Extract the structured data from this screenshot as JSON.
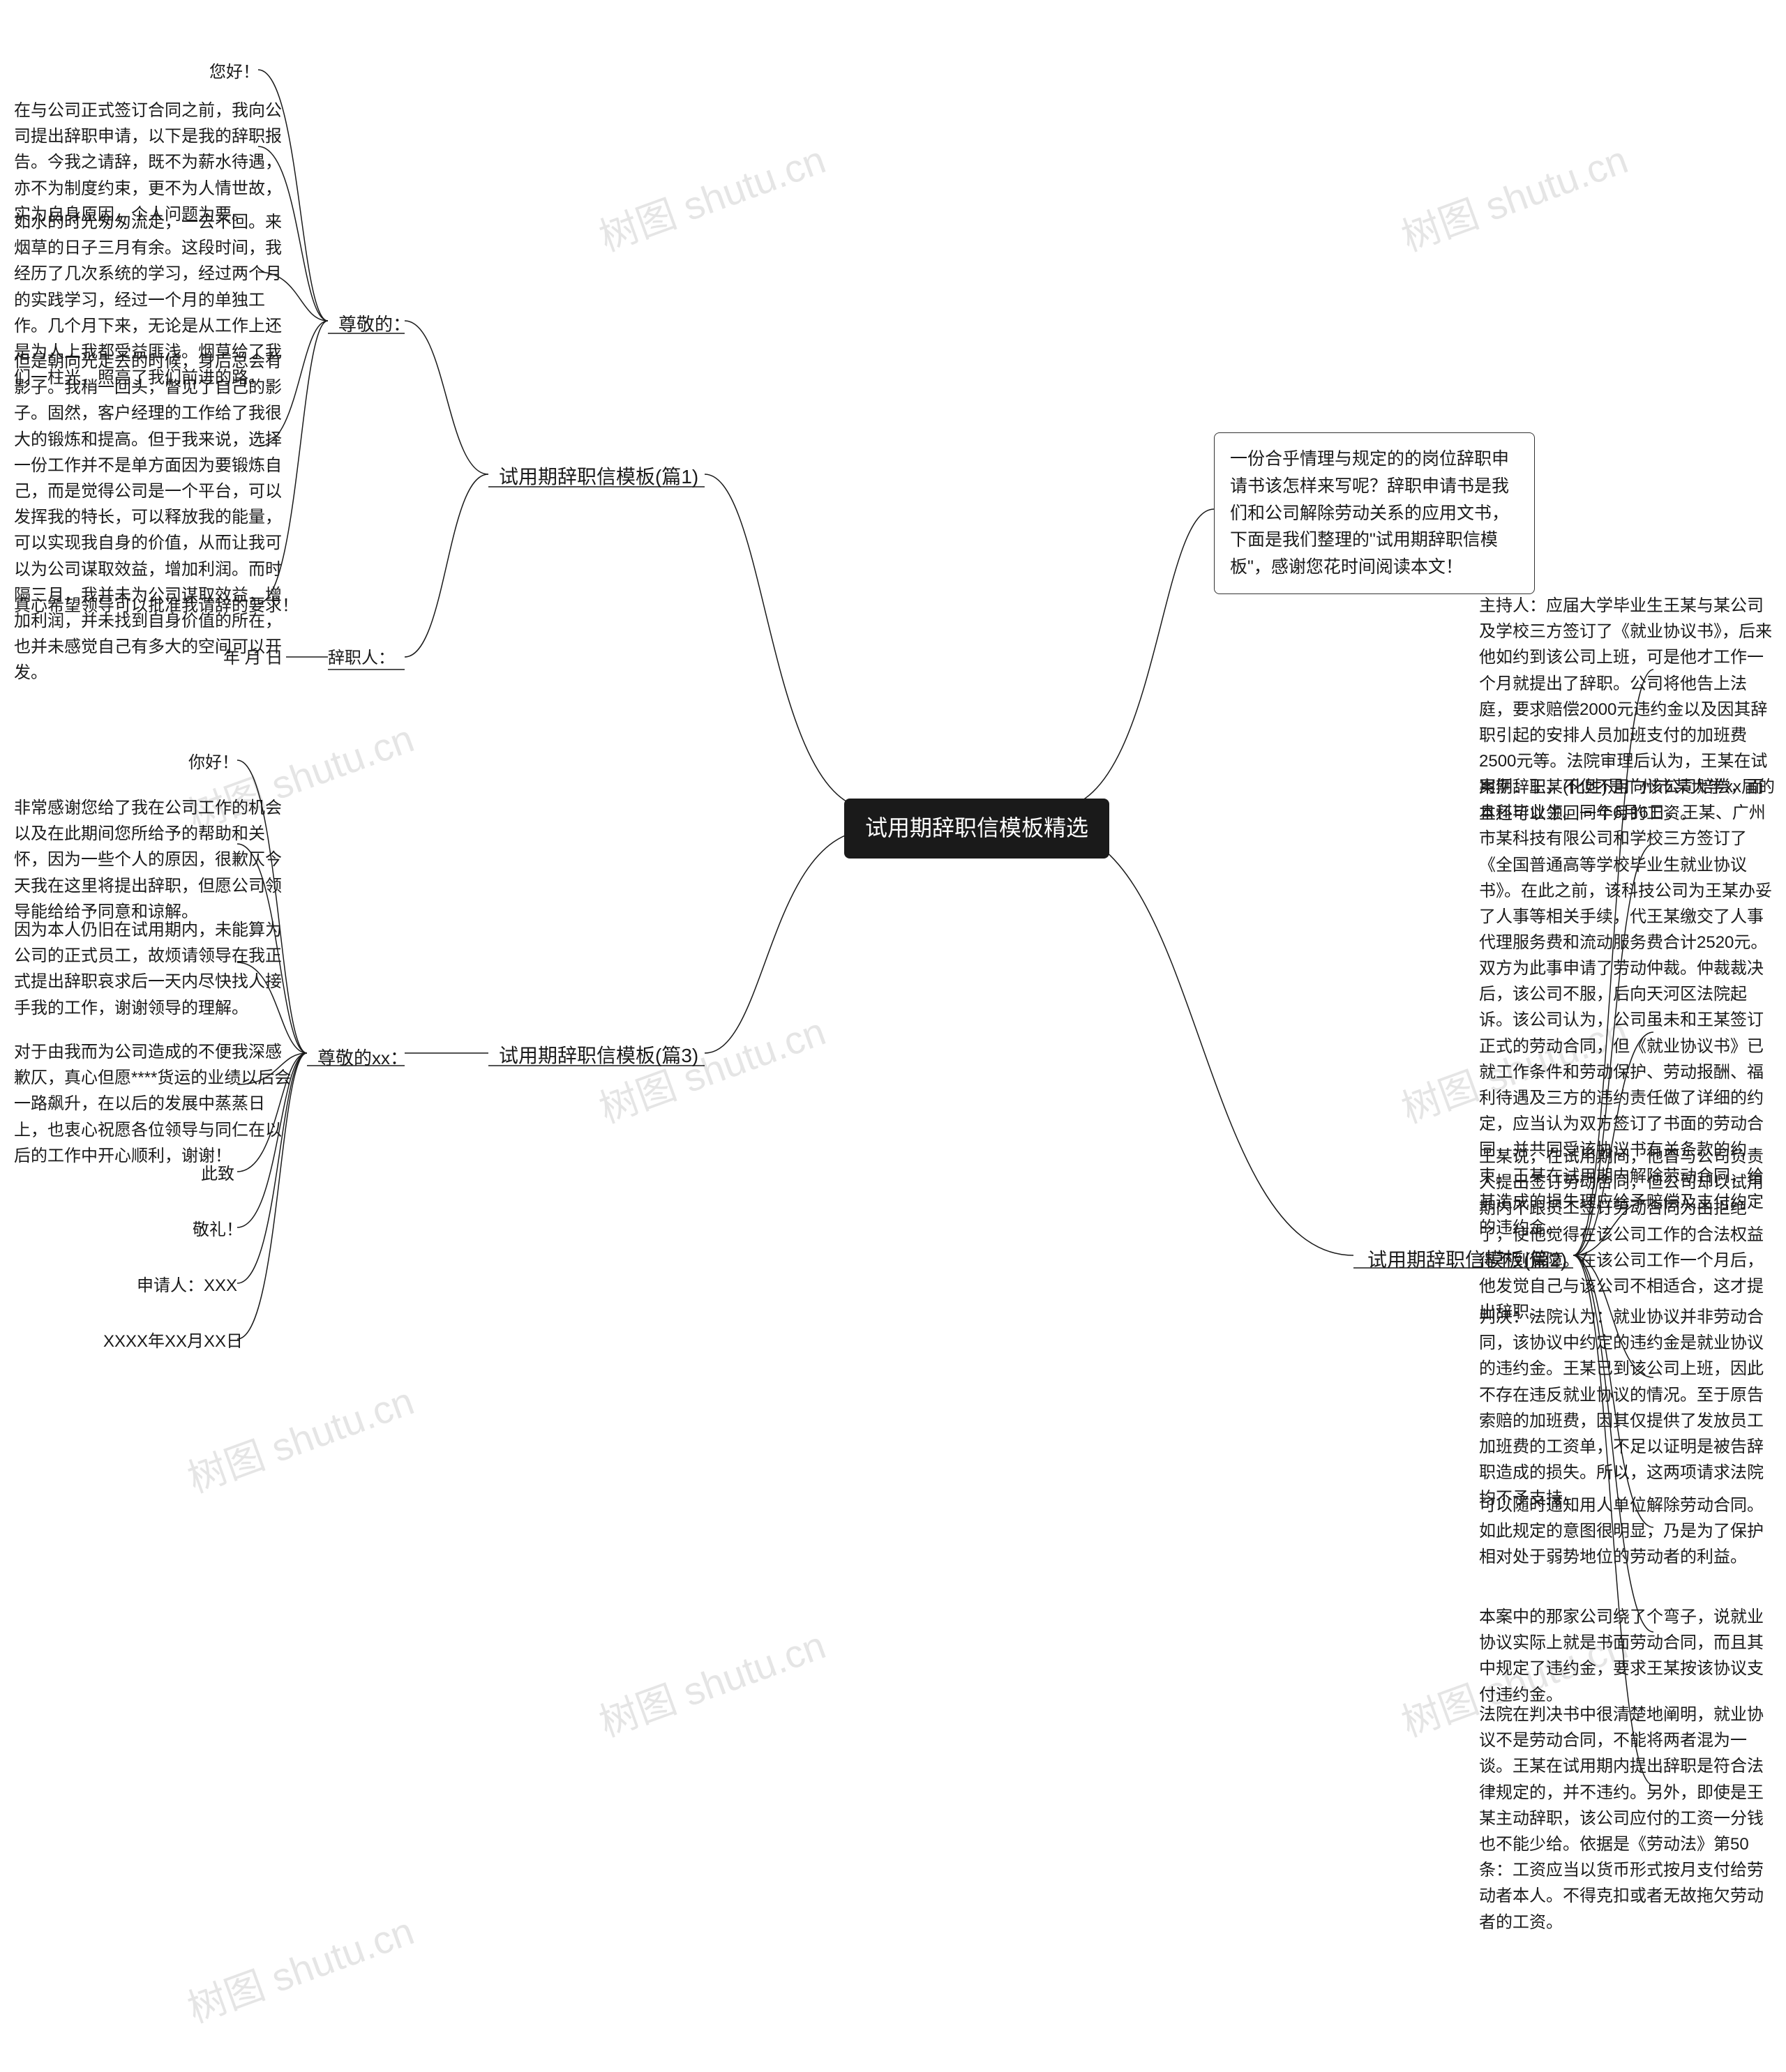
{
  "colors": {
    "background": "#ffffff",
    "line": "#1a1a1a",
    "root_bg": "#1a1a1a",
    "root_fg": "#ffffff",
    "text": "#1a1a1a",
    "watermark": "rgba(0,0,0,0.10)"
  },
  "root": {
    "label": "试用期辞职信模板精选"
  },
  "intro": {
    "text": "一份合乎情理与规定的的岗位辞职申请书该怎样来写呢？辞职申请书是我们和公司解除劳动关系的应用文书，下面是我们整理的\"试用期辞职信模板\"，感谢您花时间阅读本文！"
  },
  "sections": {
    "s1": {
      "label": "试用期辞职信模板(篇1)",
      "sub": {
        "label": "尊敬的："
      },
      "leaves": {
        "a": "您好！",
        "b": "在与公司正式签订合同之前，我向公司提出辞职申请，以下是我的辞职报告。今我之请辞，既不为薪水待遇，亦不为制度约束，更不为人情世故，实为自身原因，个人问题为要。",
        "c": "如水的时光匆匆流走，一去不回。来烟草的日子三月有余。这段时间，我经历了几次系统的学习，经过两个月的实践学习，经过一个月的单独工作。几个月下来，无论是从工作上还是为人上我都受益匪浅。烟草给了我们一柱光，照亮了我们前进的路。",
        "d": "但是朝向光走去的时候，身后总会有影子。我稍一回头，瞥见了自己的影子。固然，客户经理的工作给了我很大的锻炼和提高。但于我来说，选择一份工作并不是单方面因为要锻炼自己，而是觉得公司是一个平台，可以发挥我的特长，可以释放我的能量，可以实现我自身的价值，从而让我可以为公司谋取效益，增加利润。而时隔三月，我并未为公司谋取效益，增加利润，并未找到自身价值的所在，也并未感觉自己有多大的空间可以开发。",
        "e": "真心希望领导可以批准我请辞的要求！",
        "f_label": "辞职人：",
        "f_date": "年 月 日"
      }
    },
    "s2": {
      "label": "试用期辞职信模板(篇2)",
      "leaves": {
        "a": "主持人：应届大学毕业生王某与某公司及学校三方签订了《就业协议书》，后来他如约到该公司上班，可是他才工作一个月就提出了辞职。公司将他告上法庭，要求赔偿2000元违约金以及因其辞职引起的安排人员加班支付的加班费2500元等。法院审理后认为，王某在试用期辞职，不但不用向该公司赔偿，而且还可以领回一个月的工资。",
        "b": "案例：王某(化姓)是广州市某大学xx届的本科毕业生。同年6月6日，王某、广州市某科技有限公司和学校三方签订了《全国普通高等学校毕业生就业协议书》。在此之前，该科技公司为王某办妥了人事等相关手续，代王某缴交了人事代理服务费和流动服务费合计2520元。",
        "c": "双方为此事申请了劳动仲裁。仲裁裁决后，该公司不服，后向天河区法院起诉。该公司认为，公司虽未和王某签订正式的劳动合同，但《就业协议书》已就工作条件和劳动保护、劳动报酬、福利待遇及三方的违约责任做了详细的约定，应当认为双方签订了书面的劳动合同，并共同受该协议书有关条款的约束。王某在试用期内解除劳动合同，给其造成的损失理应给予赔偿及支付约定的违约金。",
        "d": "王某说，在试用期间，他曾与公司负责人提出签订劳动合同，但公司却以试用期内不跟员工签订劳动合同为由拒绝了，使他觉得在该公司工作的合法权益得不到保障。在该公司工作一个月后，他发觉自己与该公司不相适合，这才提出辞职。",
        "e": "判决：法院认为：就业协议并非劳动合同，该协议中约定的违约金是就业协议的违约金。王某已到该公司上班，因此不存在违反就业协议的情况。至于原告索赔的加班费，因其仅提供了发放员工加班费的工资单，不足以证明是被告辞职造成的损失。所以，这两项请求法院均不予支持。",
        "f": "可以随时通知用人单位解除劳动合同。如此规定的意图很明显，乃是为了保护相对处于弱势地位的劳动者的利益。",
        "g": "本案中的那家公司绕了个弯子，说就业协议实际上就是书面劳动合同，而且其中规定了违约金，要求王某按该协议支付违约金。",
        "h": "法院在判决书中很清楚地阐明，就业协议不是劳动合同，不能将两者混为一谈。王某在试用期内提出辞职是符合法律规定的，并不违约。另外，即使是王某主动辞职，该公司应付的工资一分钱也不能少给。依据是《劳动法》第50条：工资应当以货币形式按月支付给劳动者本人。不得克扣或者无故拖欠劳动者的工资。"
      }
    },
    "s3": {
      "label": "试用期辞职信模板(篇3)",
      "sub": {
        "label": "尊敬的xx："
      },
      "leaves": {
        "a": "你好！",
        "b": "非常感谢您给了我在公司工作的机会以及在此期间您所给予的帮助和关怀，因为一些个人的原因，很歉仄今天我在这里将提出辞职，但愿公司领导能给给予同意和谅解。",
        "c": "因为本人仍旧在试用期内，未能算为公司的正式员工，故烦请领导在我正式提出辞职哀求后一天内尽快找人接手我的工作，谢谢领导的理解。",
        "d": "对于由我而为公司造成的不便我深感歉仄，真心但愿****货运的业绩以后会一路飙升，在以后的发展中蒸蒸日上，也衷心祝愿各位领导与同仁在以后的工作中开心顺利，谢谢！",
        "e": "此致",
        "f": "敬礼！",
        "g": "申请人：XXX",
        "h": "XXXX年XX月XX日"
      }
    }
  },
  "watermark": "树图 shutu.cn",
  "layout": {
    "line_width": 1.5,
    "font_size_root": 32,
    "font_size_section": 28,
    "font_size_leaf": 24
  }
}
